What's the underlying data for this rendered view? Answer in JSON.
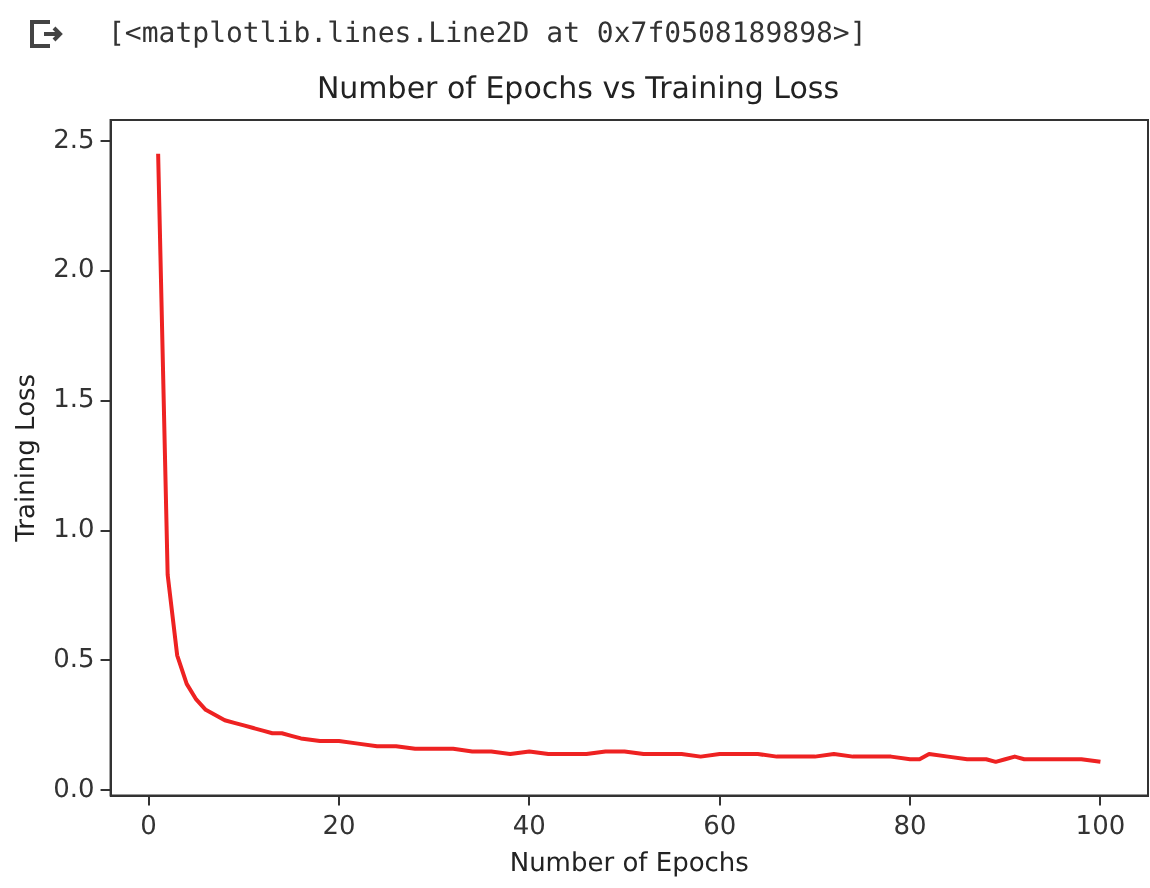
{
  "chart_data": {
    "type": "line",
    "title": "Number of Epochs vs Training Loss",
    "xlabel": "Number of Epochs",
    "ylabel": "Training Loss",
    "annotations": [
      "[<matplotlib.lines.Line2D at 0x7f0508189898>]"
    ],
    "x": [
      1,
      2,
      3,
      4,
      5,
      6,
      7,
      8,
      9,
      10,
      11,
      12,
      13,
      14,
      15,
      16,
      18,
      20,
      22,
      24,
      26,
      28,
      30,
      32,
      34,
      36,
      38,
      40,
      42,
      44,
      46,
      48,
      50,
      52,
      54,
      56,
      58,
      60,
      62,
      64,
      66,
      68,
      70,
      72,
      74,
      76,
      78,
      80,
      81,
      82,
      84,
      86,
      88,
      89,
      90,
      91,
      92,
      94,
      96,
      98,
      100
    ],
    "series": [
      {
        "color": "#ee2222",
        "values": [
          2.45,
          0.83,
          0.52,
          0.41,
          0.35,
          0.31,
          0.29,
          0.27,
          0.26,
          0.25,
          0.24,
          0.23,
          0.22,
          0.22,
          0.21,
          0.2,
          0.19,
          0.19,
          0.18,
          0.17,
          0.17,
          0.16,
          0.16,
          0.16,
          0.15,
          0.15,
          0.14,
          0.15,
          0.14,
          0.14,
          0.14,
          0.15,
          0.15,
          0.14,
          0.14,
          0.14,
          0.13,
          0.14,
          0.14,
          0.14,
          0.13,
          0.13,
          0.13,
          0.14,
          0.13,
          0.13,
          0.13,
          0.12,
          0.12,
          0.14,
          0.13,
          0.12,
          0.12,
          0.11,
          0.12,
          0.13,
          0.12,
          0.12,
          0.12,
          0.12,
          0.11
        ]
      }
    ],
    "xlim": [
      -4,
      105
    ],
    "xticks": [
      0,
      20,
      40,
      60,
      80,
      100
    ],
    "ylim": [
      -0.02,
      2.58
    ],
    "yticks": [
      {
        "value": 0,
        "label": "0.0"
      },
      0.5,
      {
        "value": 1,
        "label": "1.0"
      },
      1.5,
      {
        "value": 2,
        "label": "2.0"
      },
      2.5
    ],
    "grid": false,
    "legend": false,
    "marker": "none",
    "line_style": "solid"
  }
}
